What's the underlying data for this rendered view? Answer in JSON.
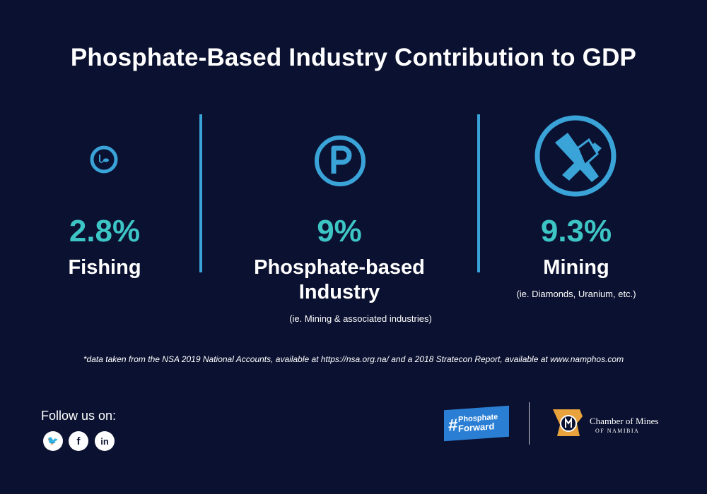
{
  "title": "Phosphate-Based Industry Contribution to GDP",
  "accent_color": "#3dc5c6",
  "icon_color": "#3aa3d8",
  "background_color": "#0b1130",
  "stats": [
    {
      "value": "2.8%",
      "label": "Fishing",
      "icon": "fishing-icon"
    },
    {
      "value": "9%",
      "label_line1": "Phosphate-based",
      "label_line2": "Industry",
      "note": "(ie. Mining & associated industries)",
      "icon": "phosphate-p-icon"
    },
    {
      "value": "9.3%",
      "label": "Mining",
      "note": "(ie. Diamonds, Uranium, etc.)",
      "icon": "pickaxe-diamond-icon"
    }
  ],
  "footnote": "*data taken from the NSA 2019 National Accounts, available at https://nsa.org.na/ and a 2018 Stratecon Report, available at www.namphos.com",
  "social": {
    "heading": "Follow us on:",
    "twitter": "🐦",
    "facebook": "f",
    "linkedin": "in"
  },
  "logos": {
    "phosphate_forward_hash": "#",
    "phosphate_forward_line1": "Phosphate",
    "phosphate_forward_line2": "Forward",
    "chamber_line1": "Chamber of Mines",
    "chamber_line2": "OF NAMIBIA"
  }
}
